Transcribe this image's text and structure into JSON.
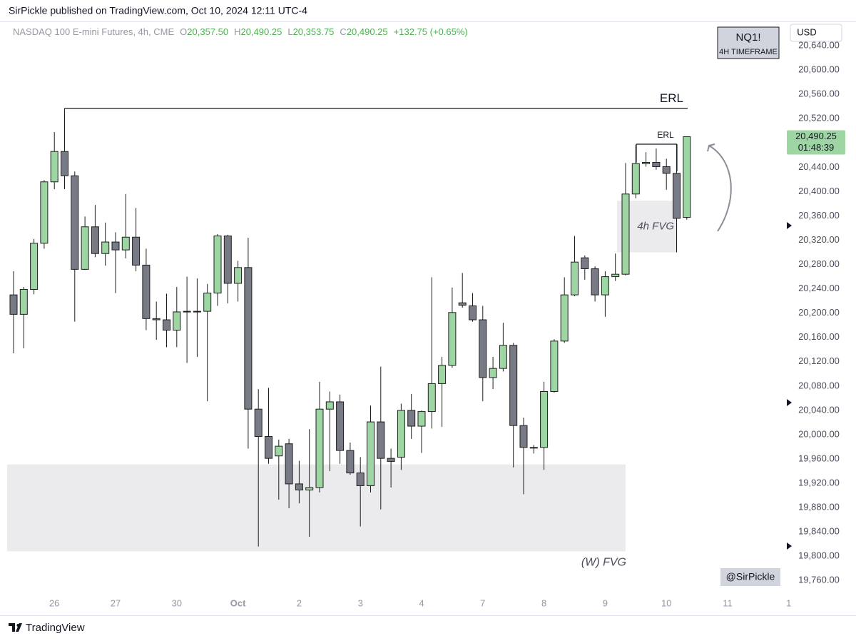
{
  "header": {
    "text": "SirPickle published on TradingView.com, Oct 10, 2024 12:11 UTC-4"
  },
  "footer": {
    "brand": "TradingView"
  },
  "chart_data": {
    "type": "candlestick",
    "title": "NASDAQ 100 E-mini Futures, 4h, CME",
    "ohlc_legend": [
      {
        "key": "O",
        "value": "20,357.50"
      },
      {
        "key": "H",
        "value": "20,490.25"
      },
      {
        "key": "L",
        "value": "20,353.75"
      },
      {
        "key": "C",
        "value": "20,490.25"
      }
    ],
    "change": "+132.75 (+0.65%)",
    "symbol": "NQ1!",
    "timeframe": "4H TIMEFRAME",
    "author": "@SirPickle",
    "currency": "USD",
    "last_price": {
      "value": 20490.25,
      "label": "20,490.25"
    },
    "countdown": "01:48:39",
    "up_color": "#9ed6a3",
    "down_color": "#787b86",
    "outline_color": "#1e1e1e",
    "grid": false,
    "categories": [
      null,
      null,
      null,
      null,
      "26",
      null,
      null,
      null,
      null,
      null,
      "27",
      null,
      null,
      null,
      null,
      null,
      "30",
      null,
      null,
      null,
      null,
      null,
      "Oct",
      null,
      null,
      null,
      null,
      null,
      "2",
      null,
      null,
      null,
      null,
      null,
      "3",
      null,
      null,
      null,
      null,
      null,
      "4",
      null,
      null,
      null,
      null,
      null,
      "7",
      null,
      null,
      null,
      null,
      null,
      "8",
      null,
      null,
      null,
      null,
      null,
      "9",
      null,
      null,
      null,
      null,
      null,
      "10",
      null,
      null,
      null,
      null,
      null,
      "11",
      null,
      null,
      null,
      null,
      null,
      "1"
    ],
    "open": [
      20230,
      20198,
      20239,
      20315,
      20416,
      20466,
      20426,
      20272,
      20342,
      20298,
      20317,
      20304,
      20325,
      20279,
      20191,
      20189,
      20172,
      20202,
      20203,
      20203,
      20233,
      20327,
      20249,
      20275,
      20042,
      19997,
      19965,
      19985,
      19919,
      19909,
      19913,
      20042,
      20054,
      19974,
      19937,
      19916,
      20021,
      19961,
      19963,
      20040,
      20014,
      20038,
      20084,
      20114,
      20217,
      20212,
      20189,
      20094,
      20109,
      20147,
      20015,
      19979,
      19979,
      20071,
      20154,
      20230,
      20291,
      20273,
      20230,
      20260,
      20264,
      20396,
      20446,
      20448,
      20441,
      20430,
      20357.5,
      null,
      null,
      null,
      null,
      null,
      null,
      null,
      null,
      null,
      null
    ],
    "high": [
      20269,
      20243,
      20322,
      20419,
      20498,
      20537,
      20433,
      20359,
      20378,
      20349,
      20333,
      20396,
      20373,
      20306,
      20219,
      20232,
      20243,
      20260,
      20257,
      20248,
      20330,
      20329,
      20286,
      20324,
      20075,
      20077,
      19992,
      19993,
      19957,
      20009,
      20087,
      20071,
      20066,
      19987,
      19963,
      20048,
      20112,
      19977,
      20051,
      20067,
      20040,
      20259,
      20128,
      20242,
      20266,
      20233,
      20212,
      20128,
      20184,
      20151,
      20028,
      19983,
      20087,
      20157,
      20259,
      20327,
      20295,
      20277,
      20269,
      20298,
      20447,
      20477,
      20465,
      20471,
      20454,
      20478,
      20490.25,
      null,
      null,
      null,
      null,
      null,
      null,
      null,
      null,
      null,
      null
    ],
    "low": [
      20134,
      20142,
      20231,
      20306,
      20404,
      20404,
      20186,
      20271,
      20292,
      20278,
      20233,
      20290,
      20269,
      20172,
      20156,
      20144,
      20144,
      20118,
      20128,
      20055,
      20212,
      20216,
      20219,
      19977,
      19816,
      19952,
      19893,
      19879,
      19887,
      19832,
      19905,
      19940,
      19952,
      19934,
      19849,
      19905,
      19877,
      19913,
      19942,
      19993,
      19970,
      20010,
      20013,
      20110,
      20209,
      20186,
      20055,
      20075,
      20104,
      19946,
      19902,
      19969,
      19942,
      20069,
      20151,
      20228,
      20255,
      20219,
      20194,
      20253,
      20262,
      20389,
      20441,
      20436,
      20403,
      20300,
      20353.75,
      null,
      null,
      null,
      null,
      null,
      null,
      null,
      null,
      null,
      null
    ],
    "close": [
      20198,
      20239,
      20315,
      20416,
      20466,
      20426,
      20272,
      20342,
      20298,
      20317,
      20304,
      20325,
      20279,
      20191,
      20189,
      20172,
      20202,
      20203,
      20203,
      20233,
      20327,
      20249,
      20275,
      20042,
      19997,
      19961,
      19981,
      19919,
      19909,
      19913,
      20042,
      20054,
      19974,
      19937,
      19916,
      20021,
      19961,
      19956,
      20040,
      20014,
      20038,
      20084,
      20114,
      20201,
      20213,
      20189,
      20094,
      20109,
      20147,
      20015,
      19979,
      19979,
      20071,
      20154,
      20230,
      20284,
      20273,
      20230,
      20260,
      20264,
      20396,
      20446,
      20448,
      20441,
      20430,
      20356,
      20490.25,
      null,
      null,
      null,
      null,
      null,
      null,
      null,
      null,
      null,
      null
    ],
    "ylim": [
      19738,
      20680
    ],
    "yticks": [
      {
        "value": 19760,
        "label": "19,760.00"
      },
      {
        "value": 19800,
        "label": "19,800.00"
      },
      {
        "value": 19840,
        "label": "19,840.00"
      },
      {
        "value": 19880,
        "label": "19,880.00"
      },
      {
        "value": 19920,
        "label": "19,920.00"
      },
      {
        "value": 19960,
        "label": "19,960.00"
      },
      {
        "value": 20000,
        "label": "20,000.00"
      },
      {
        "value": 20040,
        "label": "20,040.00"
      },
      {
        "value": 20080,
        "label": "20,080.00"
      },
      {
        "value": 20120,
        "label": "20,120.00"
      },
      {
        "value": 20160,
        "label": "20,160.00"
      },
      {
        "value": 20200,
        "label": "20,200.00"
      },
      {
        "value": 20240,
        "label": "20,240.00"
      },
      {
        "value": 20280,
        "label": "20,280.00"
      },
      {
        "value": 20320,
        "label": "20,320.00"
      },
      {
        "value": 20360,
        "label": "20,360.00"
      },
      {
        "value": 20400,
        "label": "20,400.00"
      },
      {
        "value": 20440,
        "label": "20,440.00"
      },
      {
        "value": 20480,
        "label": "20,480.00"
      },
      {
        "value": 20520,
        "label": "20,520.00"
      },
      {
        "value": 20560,
        "label": "20,560.00"
      },
      {
        "value": 20600,
        "label": "20,600.00"
      },
      {
        "value": 20640,
        "label": "20,640.00"
      }
    ],
    "annotations": [
      {
        "text": "ERL",
        "y": 20537
      },
      {
        "text": "ERL",
        "y": 20478
      },
      {
        "text": "4h FVG",
        "y": [
          20300,
          20385
        ]
      },
      {
        "text": "(W) FVG",
        "y": [
          19808,
          19951
        ]
      }
    ]
  }
}
